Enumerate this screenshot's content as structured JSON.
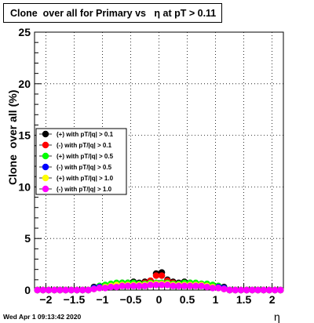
{
  "header": {
    "title": "Clone  over all for Primary vs   η at pT > 0.11",
    "timestamp": "Wed Apr  1 09:13:42 2020"
  },
  "chart_data": {
    "type": "scatter",
    "xlabel": "η",
    "ylabel": "Clone  over all (%)",
    "xlim": [
      -2.2,
      2.2
    ],
    "ylim": [
      0,
      25
    ],
    "grid": true,
    "legend_position": "left-middle",
    "x_ticks": [
      "−2",
      "−1.5",
      "−1",
      "−0.5",
      "0",
      "0.5",
      "1",
      "1.5",
      "2"
    ],
    "x_tick_values": [
      -2,
      -1.5,
      -1,
      -0.5,
      0,
      0.5,
      1,
      1.5,
      2
    ],
    "y_ticks": [
      "0",
      "5",
      "10",
      "15",
      "20",
      "25"
    ],
    "y_tick_values": [
      0,
      5,
      10,
      15,
      20,
      25
    ],
    "x": [
      -2.15,
      -2.05,
      -1.95,
      -1.85,
      -1.75,
      -1.65,
      -1.55,
      -1.45,
      -1.35,
      -1.25,
      -1.15,
      -1.05,
      -0.95,
      -0.85,
      -0.75,
      -0.65,
      -0.55,
      -0.45,
      -0.35,
      -0.25,
      -0.15,
      -0.05,
      0.05,
      0.15,
      0.25,
      0.35,
      0.45,
      0.55,
      0.65,
      0.75,
      0.85,
      0.95,
      1.05,
      1.15,
      1.25,
      1.35,
      1.45,
      1.55,
      1.65,
      1.75,
      1.85,
      1.95,
      2.05,
      2.15
    ],
    "series": [
      {
        "name": "(+) with pT/|q| > 0.1",
        "color": "#000000",
        "values": [
          0,
          0,
          0,
          0,
          0,
          0,
          0,
          0,
          0,
          0,
          0.3,
          0.3,
          0.4,
          0.5,
          0.6,
          0.7,
          0.7,
          0.8,
          0.7,
          0.8,
          0.9,
          1.6,
          1.7,
          1.0,
          0.8,
          0.7,
          0.8,
          0.7,
          0.6,
          0.6,
          0.5,
          0.4,
          0.3,
          0.3,
          0,
          0,
          0,
          0,
          0,
          0,
          0,
          0,
          0,
          0
        ]
      },
      {
        "name": "(-) with pT/|q| > 0.1",
        "color": "#ff0000",
        "values": [
          0,
          0,
          0,
          0,
          0,
          0,
          0,
          0,
          0,
          0,
          0.2,
          0.3,
          0.3,
          0.4,
          0.5,
          0.5,
          0.6,
          0.6,
          0.6,
          0.7,
          0.9,
          1.4,
          1.4,
          0.9,
          0.7,
          0.6,
          0.6,
          0.6,
          0.5,
          0.5,
          0.4,
          0.3,
          0.3,
          0.2,
          0,
          0,
          0,
          0,
          0,
          0,
          0,
          0,
          0,
          0
        ]
      },
      {
        "name": "(+) with pT/|q| > 0.5",
        "color": "#00ff00",
        "values": [
          0,
          0,
          0,
          0,
          0,
          0,
          0,
          0,
          0,
          0,
          0.2,
          0.4,
          0.5,
          0.6,
          0.7,
          0.7,
          0.7,
          0.7,
          0.6,
          0.6,
          0.7,
          0.7,
          0.7,
          0.7,
          0.6,
          0.6,
          0.7,
          0.7,
          0.7,
          0.6,
          0.6,
          0.5,
          0.4,
          0.2,
          0,
          0,
          0,
          0,
          0,
          0,
          0,
          0,
          0,
          0
        ]
      },
      {
        "name": "(-) with pT/|q| > 0.5",
        "color": "#0000ff",
        "values": [
          0,
          0,
          0,
          0,
          0,
          0,
          0,
          0,
          0,
          0,
          0.2,
          0.3,
          0.3,
          0.4,
          0.5,
          0.5,
          0.5,
          0.5,
          0.5,
          0.5,
          0.6,
          0.6,
          0.6,
          0.6,
          0.5,
          0.5,
          0.5,
          0.5,
          0.5,
          0.5,
          0.4,
          0.3,
          0.3,
          0.2,
          0,
          0,
          0,
          0,
          0,
          0,
          0,
          0,
          0,
          0
        ]
      },
      {
        "name": "(+) with pT/|q| > 1.0",
        "color": "#ffff00",
        "values": [
          0,
          0,
          0,
          0,
          0,
          0,
          0,
          0,
          0,
          0,
          0.1,
          0.2,
          0.3,
          0.4,
          0.5,
          0.5,
          0.5,
          0.5,
          0.5,
          0.5,
          0.6,
          0.6,
          0.6,
          0.6,
          0.5,
          0.5,
          0.5,
          0.5,
          0.5,
          0.5,
          0.4,
          0.3,
          0.2,
          0.1,
          0,
          0,
          0,
          0,
          0,
          0,
          0,
          0,
          0,
          0
        ]
      },
      {
        "name": "(-) with pT/|q| > 1.0",
        "color": "#ff00ff",
        "values": [
          0,
          0,
          0,
          0,
          0,
          0,
          0,
          0,
          0,
          0,
          0.1,
          0.2,
          0.2,
          0.3,
          0.3,
          0.4,
          0.4,
          0.4,
          0.4,
          0.4,
          0.5,
          0.5,
          0.5,
          0.5,
          0.4,
          0.4,
          0.4,
          0.4,
          0.4,
          0.4,
          0.3,
          0.2,
          0.2,
          0.1,
          0,
          0,
          0,
          0,
          0,
          0,
          0,
          0,
          0,
          0
        ]
      }
    ]
  }
}
